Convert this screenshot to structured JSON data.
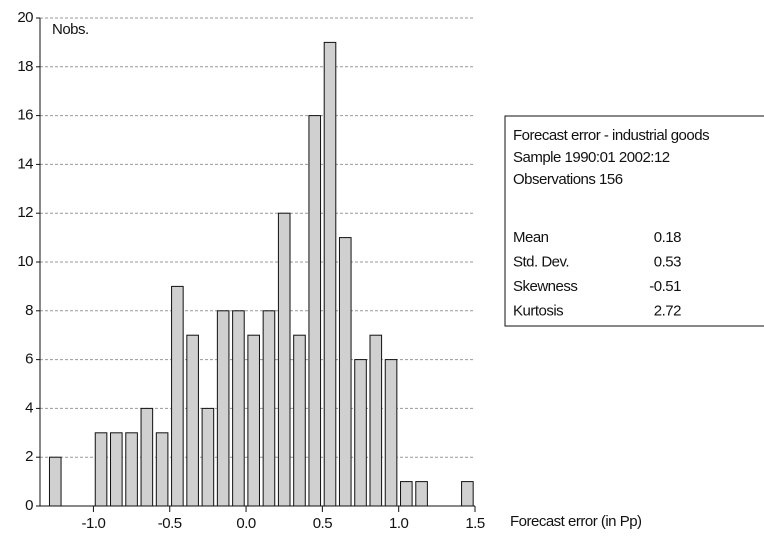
{
  "chart_data": {
    "type": "histogram",
    "y_label": "Nobs.",
    "x_label": "Forecast error (in Pp)",
    "bins": [
      -1.3,
      -1.2,
      -1.1,
      -1.0,
      -0.9,
      -0.8,
      -0.7,
      -0.6,
      -0.5,
      -0.4,
      -0.3,
      -0.2,
      -0.1,
      0.0,
      0.1,
      0.2,
      0.3,
      0.4,
      0.5,
      0.6,
      0.7,
      0.8,
      0.9,
      1.0,
      1.1,
      1.2,
      1.3,
      1.4,
      1.5
    ],
    "values": [
      2,
      0,
      0,
      3,
      3,
      3,
      4,
      3,
      9,
      7,
      4,
      8,
      8,
      7,
      8,
      12,
      7,
      16,
      19,
      11,
      6,
      7,
      6,
      1,
      1,
      0,
      0,
      1
    ],
    "color": "#d0d0d0",
    "xlim": [
      -1.35,
      1.5
    ],
    "xticks": [
      {
        "value": -1.0,
        "label": "-1.0"
      },
      -0.5,
      {
        "value": 0.0,
        "label": "0.0"
      },
      0.5,
      {
        "value": 1.0,
        "label": "1.0"
      },
      1.5
    ],
    "ylim": [
      0,
      20
    ],
    "yticks": [
      0,
      2,
      4,
      6,
      8,
      10,
      12,
      14,
      16,
      18,
      20
    ],
    "grid": true,
    "stats_box": {
      "lines": [
        "Forecast error - industrial goods",
        "Sample 1990:01 2002:12",
        "Observations 156"
      ],
      "rows": [
        [
          "Mean",
          "0.18"
        ],
        [
          "Std. Dev.",
          "0.53"
        ],
        [
          "Skewness",
          "-0.51"
        ],
        [
          "Kurtosis",
          "2.72"
        ]
      ]
    }
  }
}
